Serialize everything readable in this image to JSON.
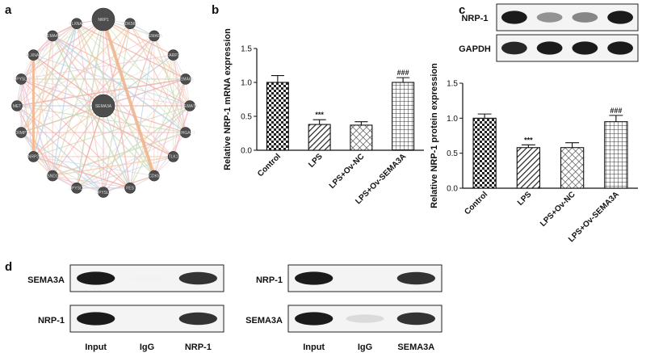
{
  "panels": {
    "a": "a",
    "b": "b",
    "c": "c",
    "d": "d"
  },
  "network": {
    "center": "SEMA3A",
    "hub": "NRP1",
    "nodes": [
      "NRP1",
      "CDK5R1",
      "SEMA5A",
      "FARP2",
      "SEMA6A",
      "SEMA7A",
      "ARHGAP1",
      "TLK1",
      "CDK5",
      "FES",
      "DPYSL2",
      "DPYSL5",
      "SND1",
      "NRP2",
      "CRMP1",
      "MET",
      "DPYSL3",
      "PLXNA2",
      "SEMA4D",
      "PLXNA1"
    ]
  },
  "chart_data": [
    {
      "type": "bar",
      "panel": "b",
      "categories": [
        "Control",
        "LPS",
        "LPS+Ov-NC",
        "LPS+Ov-SEMA3A"
      ],
      "values": [
        1.0,
        0.38,
        0.37,
        1.0
      ],
      "errors": [
        0.1,
        0.07,
        0.05,
        0.07
      ],
      "significance": [
        "",
        "***",
        "",
        "###"
      ],
      "ylabel": "Relative NRP-1 mRNA expression",
      "ylim": [
        0,
        1.5
      ],
      "yticks": [
        "0.0",
        "0.5",
        "1.0",
        "1.5"
      ],
      "patterns": [
        "checker",
        "diagonal",
        "diamond",
        "grid"
      ]
    },
    {
      "type": "bar",
      "panel": "c",
      "categories": [
        "Control",
        "LPS",
        "LPS+Ov-NC",
        "LPS+Ov-SEMA3A"
      ],
      "values": [
        1.0,
        0.58,
        0.58,
        0.95
      ],
      "errors": [
        0.06,
        0.04,
        0.07,
        0.09
      ],
      "significance": [
        "",
        "***",
        "",
        "###"
      ],
      "ylabel": "Relative NRP-1 protein expression",
      "ylim": [
        0,
        1.5
      ],
      "yticks": [
        "0.0",
        "0.5",
        "1.0",
        "1.5"
      ],
      "patterns": [
        "checker",
        "diagonal",
        "diamond",
        "grid"
      ]
    }
  ],
  "western_c": {
    "rows": [
      {
        "label": "NRP-1",
        "intensity": [
          0.95,
          0.45,
          0.5,
          0.95
        ]
      },
      {
        "label": "GAPDH",
        "intensity": [
          0.9,
          0.95,
          0.95,
          0.95
        ]
      }
    ]
  },
  "coip": {
    "left": {
      "rows": [
        {
          "label": "SEMA3A",
          "intensity": [
            0.95,
            0.05,
            0.85
          ]
        },
        {
          "label": "NRP-1",
          "intensity": [
            0.95,
            0.0,
            0.85
          ]
        }
      ],
      "lanes": [
        "Input",
        "IgG",
        "NRP-1"
      ]
    },
    "right": {
      "rows": [
        {
          "label": "NRP-1",
          "intensity": [
            0.95,
            0.0,
            0.85
          ]
        },
        {
          "label": "SEMA3A",
          "intensity": [
            0.95,
            0.15,
            0.85
          ]
        }
      ],
      "lanes": [
        "Input",
        "IgG",
        "SEMA3A"
      ]
    }
  }
}
